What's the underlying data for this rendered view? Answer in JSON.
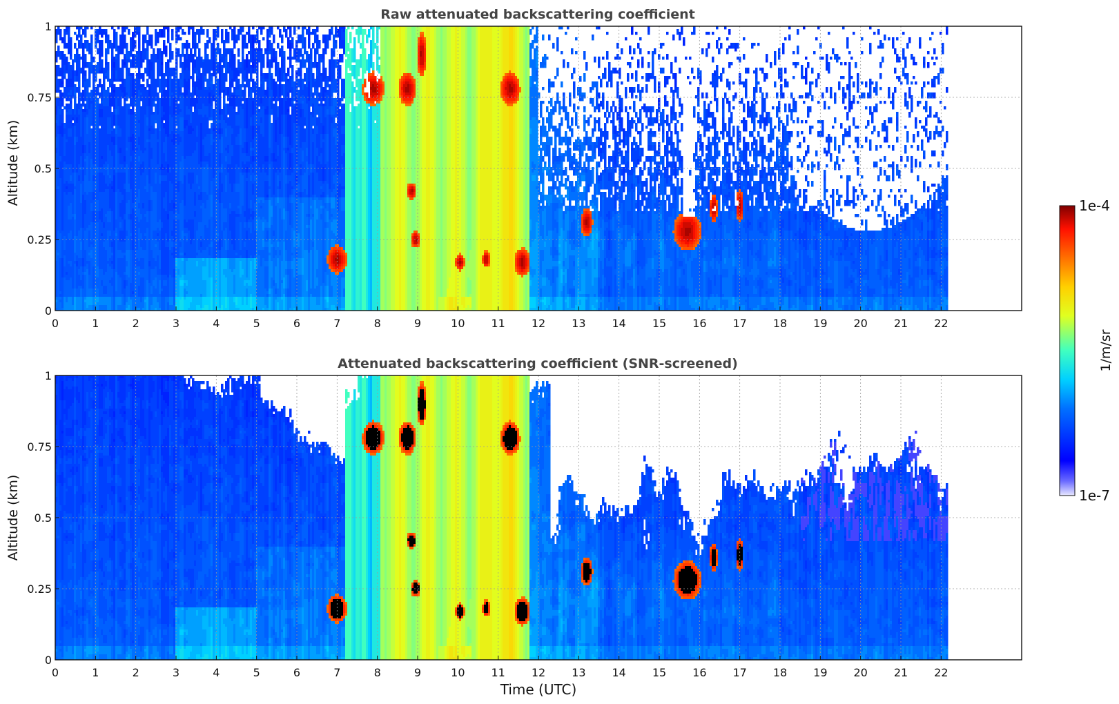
{
  "chart_data": [
    {
      "type": "heatmap",
      "id": "raw",
      "title": "Raw attenuated backscattering coefficient",
      "xlabel": "",
      "ylabel": "Altitude (km)",
      "xlim": [
        0,
        24
      ],
      "ylim": [
        0,
        1
      ],
      "xticks": [
        "0",
        "1",
        "2",
        "3",
        "4",
        "5",
        "6",
        "7",
        "8",
        "9",
        "10",
        "11",
        "12",
        "13",
        "14",
        "15",
        "16",
        "17",
        "18",
        "19",
        "20",
        "21",
        "22"
      ],
      "yticks": [
        "0",
        "0.25",
        "0.5",
        "0.75",
        "1"
      ],
      "data_extent_hours": 22.15,
      "grid": true,
      "screened": false
    },
    {
      "type": "heatmap",
      "id": "snr",
      "title": "Attenuated backscattering coefficient (SNR-screened)",
      "xlabel": "Time (UTC)",
      "ylabel": "Altitude (km)",
      "xlim": [
        0,
        24
      ],
      "ylim": [
        0,
        1
      ],
      "xticks": [
        "0",
        "1",
        "2",
        "3",
        "4",
        "5",
        "6",
        "7",
        "8",
        "9",
        "10",
        "11",
        "12",
        "13",
        "14",
        "15",
        "16",
        "17",
        "18",
        "19",
        "20",
        "21",
        "22"
      ],
      "yticks": [
        "0",
        "0.25",
        "0.5",
        "0.75",
        "1"
      ],
      "data_extent_hours": 22.15,
      "grid": true,
      "screened": true
    }
  ],
  "colorbar": {
    "label": "1/m/sr",
    "max_label": "1e-4",
    "min_label": "1e-7",
    "scale": "log",
    "colormap": "jet"
  }
}
